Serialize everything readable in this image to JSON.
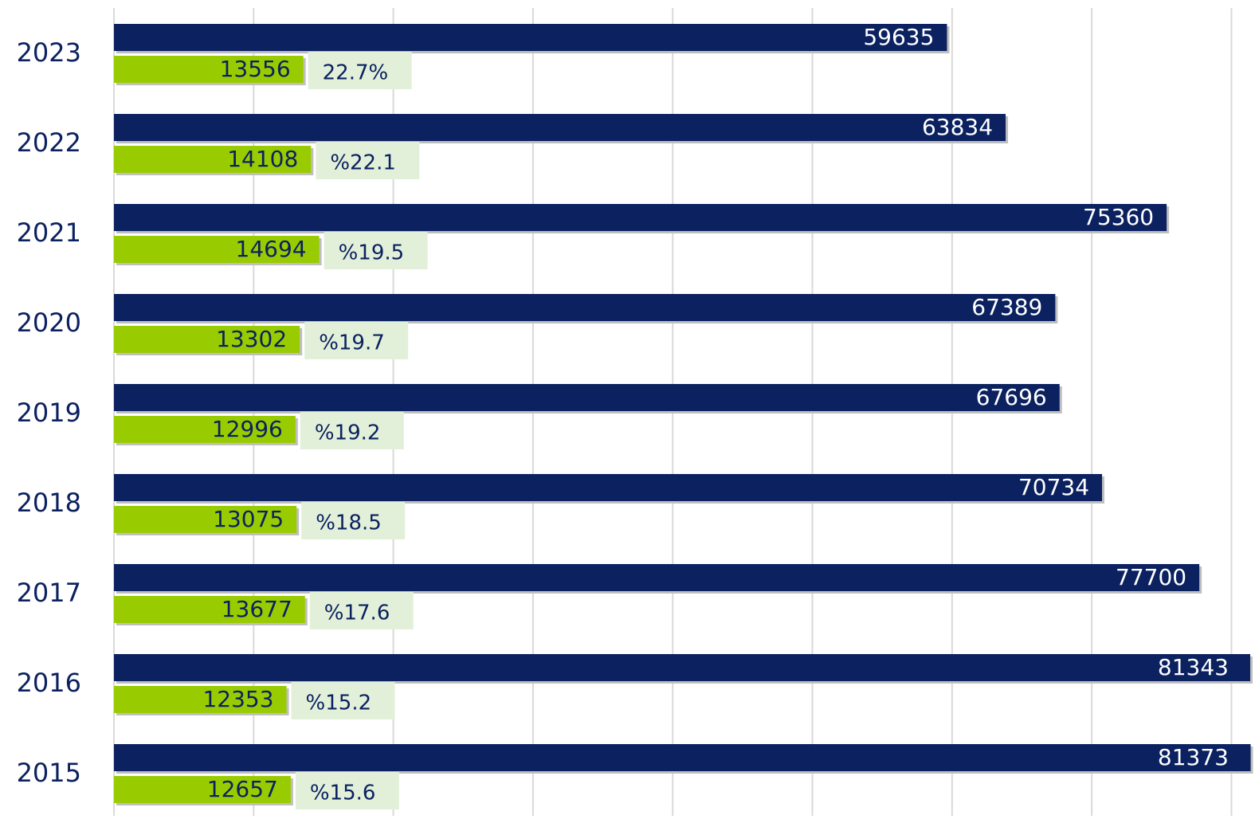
{
  "chart_data": {
    "type": "bar",
    "orientation": "horizontal",
    "categories": [
      "2023",
      "2022",
      "2021",
      "2020",
      "2019",
      "2018",
      "2017",
      "2016",
      "2015"
    ],
    "series": [
      {
        "color": "#0b2160",
        "values": [
          59635,
          63834,
          75360,
          67389,
          67696,
          70734,
          77700,
          81343,
          81373
        ]
      },
      {
        "color": "#99cc00",
        "values": [
          13556,
          14108,
          14694,
          13302,
          12996,
          13075,
          13677,
          12353,
          12657
        ]
      }
    ],
    "annotations": [
      "22.7%",
      "%22.1",
      "%19.5",
      "%19.7",
      "%19.2",
      "%18.5",
      "%17.6",
      "%15.2",
      "%15.6"
    ],
    "xlim": [
      0,
      81400
    ],
    "xticks": [
      0,
      10000,
      20000,
      30000,
      40000,
      50000,
      60000,
      70000,
      80000
    ],
    "grid": true
  }
}
